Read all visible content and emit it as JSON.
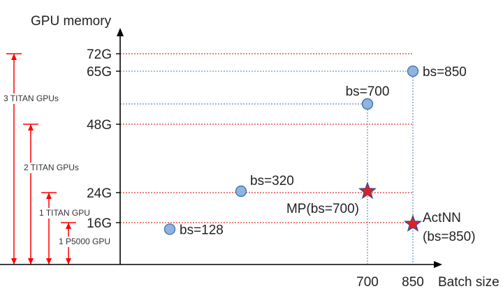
{
  "chart_data": {
    "type": "scatter",
    "ylabel": "GPU memory",
    "xlabel": "Batch size",
    "y_ticks": [
      {
        "label": "72G",
        "value": 72
      },
      {
        "label": "65G",
        "value": 65
      },
      {
        "label": "48G",
        "value": 48
      },
      {
        "label": "24G",
        "value": 24
      },
      {
        "label": "16G",
        "value": 16
      }
    ],
    "x_ticks": [
      {
        "label": "700",
        "value": 700
      },
      {
        "label": "850",
        "value": 850
      }
    ],
    "hlines": [
      {
        "y": 72,
        "color": "#e03030",
        "x_end": 850
      },
      {
        "y": 48,
        "color": "#e03030",
        "x_end": 850
      },
      {
        "y": 24,
        "color": "#e03030",
        "x_end": 850
      },
      {
        "y": 16,
        "color": "#e03030",
        "x_end": 850
      },
      {
        "y": 65,
        "color": "#6f97cf",
        "x_end": 850
      },
      {
        "y": 54.5,
        "color": "#6f97cf",
        "x_end": 700
      }
    ],
    "vlines": [
      {
        "x": 700,
        "color": "#6f97cf",
        "y_top": 54.5
      },
      {
        "x": 850,
        "color": "#6f97cf",
        "y_top": 65
      }
    ],
    "points": [
      {
        "x": 128,
        "y": 13.5,
        "marker": "circle",
        "label": "bs=128",
        "label_pos": "right"
      },
      {
        "x": 320,
        "y": 24.5,
        "marker": "circle",
        "label": "bs=320",
        "label_pos": "upper-right"
      },
      {
        "x": 700,
        "y": 54.5,
        "marker": "circle",
        "label": "bs=700",
        "label_pos": "above"
      },
      {
        "x": 850,
        "y": 65,
        "marker": "circle",
        "label": "bs=850",
        "label_pos": "right"
      },
      {
        "x": 700,
        "y": 24.5,
        "marker": "star",
        "label": "MP(bs=700)",
        "label_pos": "below-left"
      },
      {
        "x": 850,
        "y": 15.5,
        "marker": "star",
        "label": "ActNN\n(bs=850)",
        "label_pos": "right"
      }
    ],
    "brackets": [
      {
        "label": "3 TITAN GPUs",
        "top": 72
      },
      {
        "label": "2 TITAN GPUs",
        "top": 48
      },
      {
        "label": "1 TITAN GPU",
        "top": 24
      },
      {
        "label": "1 P5000 GPU",
        "top": 16
      }
    ],
    "colors": {
      "axis": "#000000",
      "guide_red": "#e03030",
      "guide_blue": "#6f97cf",
      "circle_fill": "#8eb4e3",
      "circle_stroke": "#41709c",
      "star_fill": "#e02020",
      "star_stroke": "#2f4f8f",
      "bracket": "#ff0000"
    }
  }
}
